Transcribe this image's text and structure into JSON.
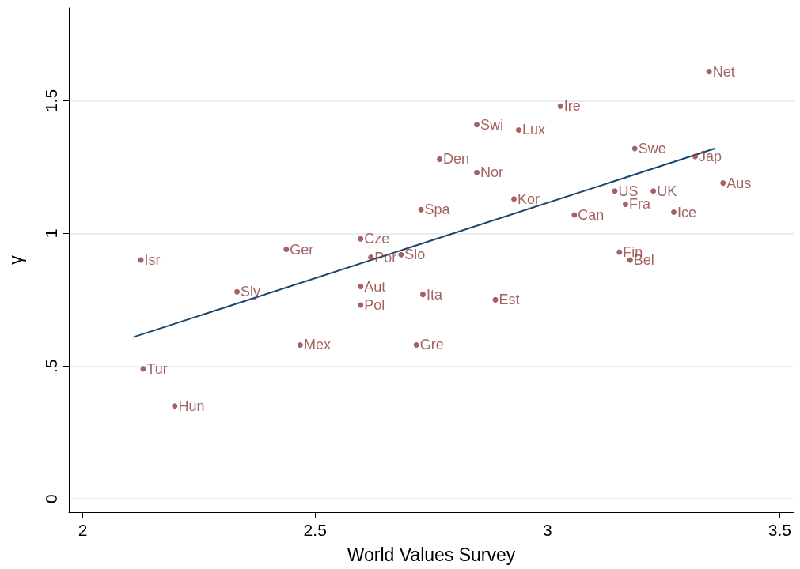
{
  "chart_data": {
    "type": "scatter",
    "xlabel": "World Values Survey",
    "ylabel": "γ",
    "xlim": [
      1.97,
      3.53
    ],
    "xticks": [
      2,
      2.5,
      3,
      3.5
    ],
    "ylim": [
      -0.05,
      1.85
    ],
    "yticks": [
      0,
      {
        "value": 0.5,
        "label": ".5"
      },
      1,
      1.5
    ],
    "grid": "y",
    "series": [
      {
        "type": "scatter",
        "color": "#8f3b3b",
        "x": [
          3.348,
          3.028,
          2.848,
          2.938,
          3.188,
          3.318,
          2.768,
          2.848,
          3.378,
          3.145,
          3.228,
          2.928,
          3.168,
          2.728,
          3.272,
          3.058,
          2.598,
          2.438,
          2.685,
          2.62,
          3.155,
          3.178,
          2.125,
          2.598,
          2.332,
          2.732,
          2.888,
          2.598,
          2.468,
          2.718,
          2.13,
          2.198
        ],
        "values": [
          1.61,
          1.48,
          1.41,
          1.39,
          1.32,
          1.29,
          1.28,
          1.23,
          1.19,
          1.16,
          1.16,
          1.13,
          1.11,
          1.09,
          1.08,
          1.07,
          0.98,
          0.94,
          0.92,
          0.91,
          0.93,
          0.9,
          0.9,
          0.8,
          0.78,
          0.77,
          0.75,
          0.73,
          0.58,
          0.58,
          0.49,
          0.35
        ],
        "value_labels": [
          "Net",
          "Ire",
          "Swi",
          "Lux",
          "Swe",
          "Jap",
          "Den",
          "Nor",
          "Aus",
          "US",
          "UK",
          "Kor",
          "Fra",
          "Spa",
          "Ice",
          "Can",
          "Cze",
          "Ger",
          "Slo",
          "Por",
          "Fin",
          "Bel",
          "Isr",
          "Aut",
          "Sly",
          "Ita",
          "Est",
          "Pol",
          "Mex",
          "Gre",
          "Tur",
          "Hun"
        ]
      },
      {
        "type": "line",
        "color": "#1a476f",
        "x": [
          2.11,
          3.36
        ],
        "values": [
          0.61,
          1.32
        ]
      }
    ]
  }
}
